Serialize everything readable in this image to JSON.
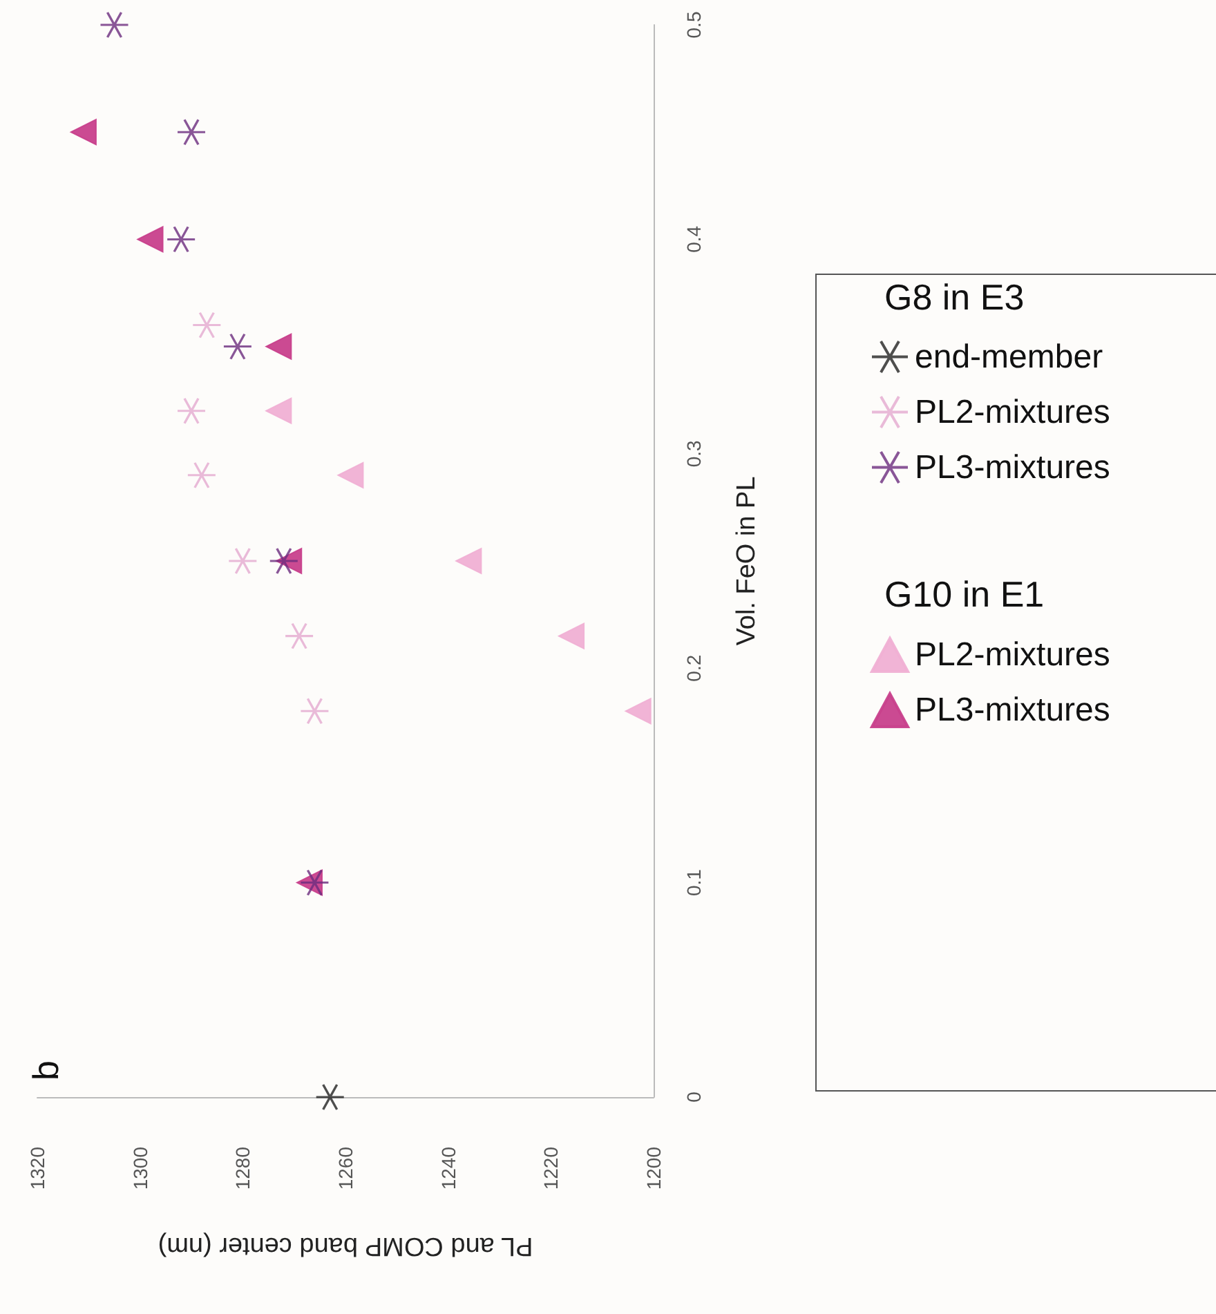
{
  "chart_data": {
    "type": "scatter",
    "title": "b",
    "xlabel": "PL and COMP band center (nm)",
    "ylabel": "Vol. FeO in PL",
    "xlim": [
      1320,
      1200
    ],
    "xticks": [
      1320,
      1300,
      1280,
      1260,
      1240,
      1220,
      1200
    ],
    "ylim": [
      0,
      0.5
    ],
    "yticks": [
      0,
      0.1,
      0.2,
      0.3,
      0.4,
      0.5
    ],
    "legend": "right",
    "annotations": [
      "G10 in E1",
      "G8 in E3"
    ],
    "series": [
      {
        "name": "PL2-mixtures",
        "color": "#f0b0d4",
        "marker": "triangle",
        "x": [
          1203,
          1216,
          1236,
          1259,
          1273
        ],
        "values": [
          0.18,
          0.215,
          0.25,
          0.29,
          0.32
        ]
      },
      {
        "name": "PL3-mixtures",
        "color": "#c8408c",
        "marker": "triangle",
        "x": [
          1267,
          1271,
          1273,
          1298,
          1311
        ],
        "values": [
          0.1,
          0.25,
          0.35,
          0.4,
          0.45
        ]
      },
      {
        "name": "end-member",
        "color": "#222222",
        "marker": "cross",
        "x": [
          1263
        ],
        "values": [
          0
        ]
      },
      {
        "name": "PL2-mixtures",
        "color": "#e3a9cf",
        "marker": "cross",
        "x": [
          1266,
          1269,
          1280,
          1288,
          1290,
          1287
        ],
        "values": [
          0.18,
          0.215,
          0.25,
          0.29,
          0.32,
          0.36
        ]
      },
      {
        "name": "PL3-mixtures",
        "color": "#6b2c7e",
        "marker": "cross",
        "x": [
          1266,
          1272,
          1281,
          1292,
          1290,
          1305
        ],
        "values": [
          0.1,
          0.25,
          0.35,
          0.4,
          0.45,
          0.5
        ]
      }
    ]
  }
}
